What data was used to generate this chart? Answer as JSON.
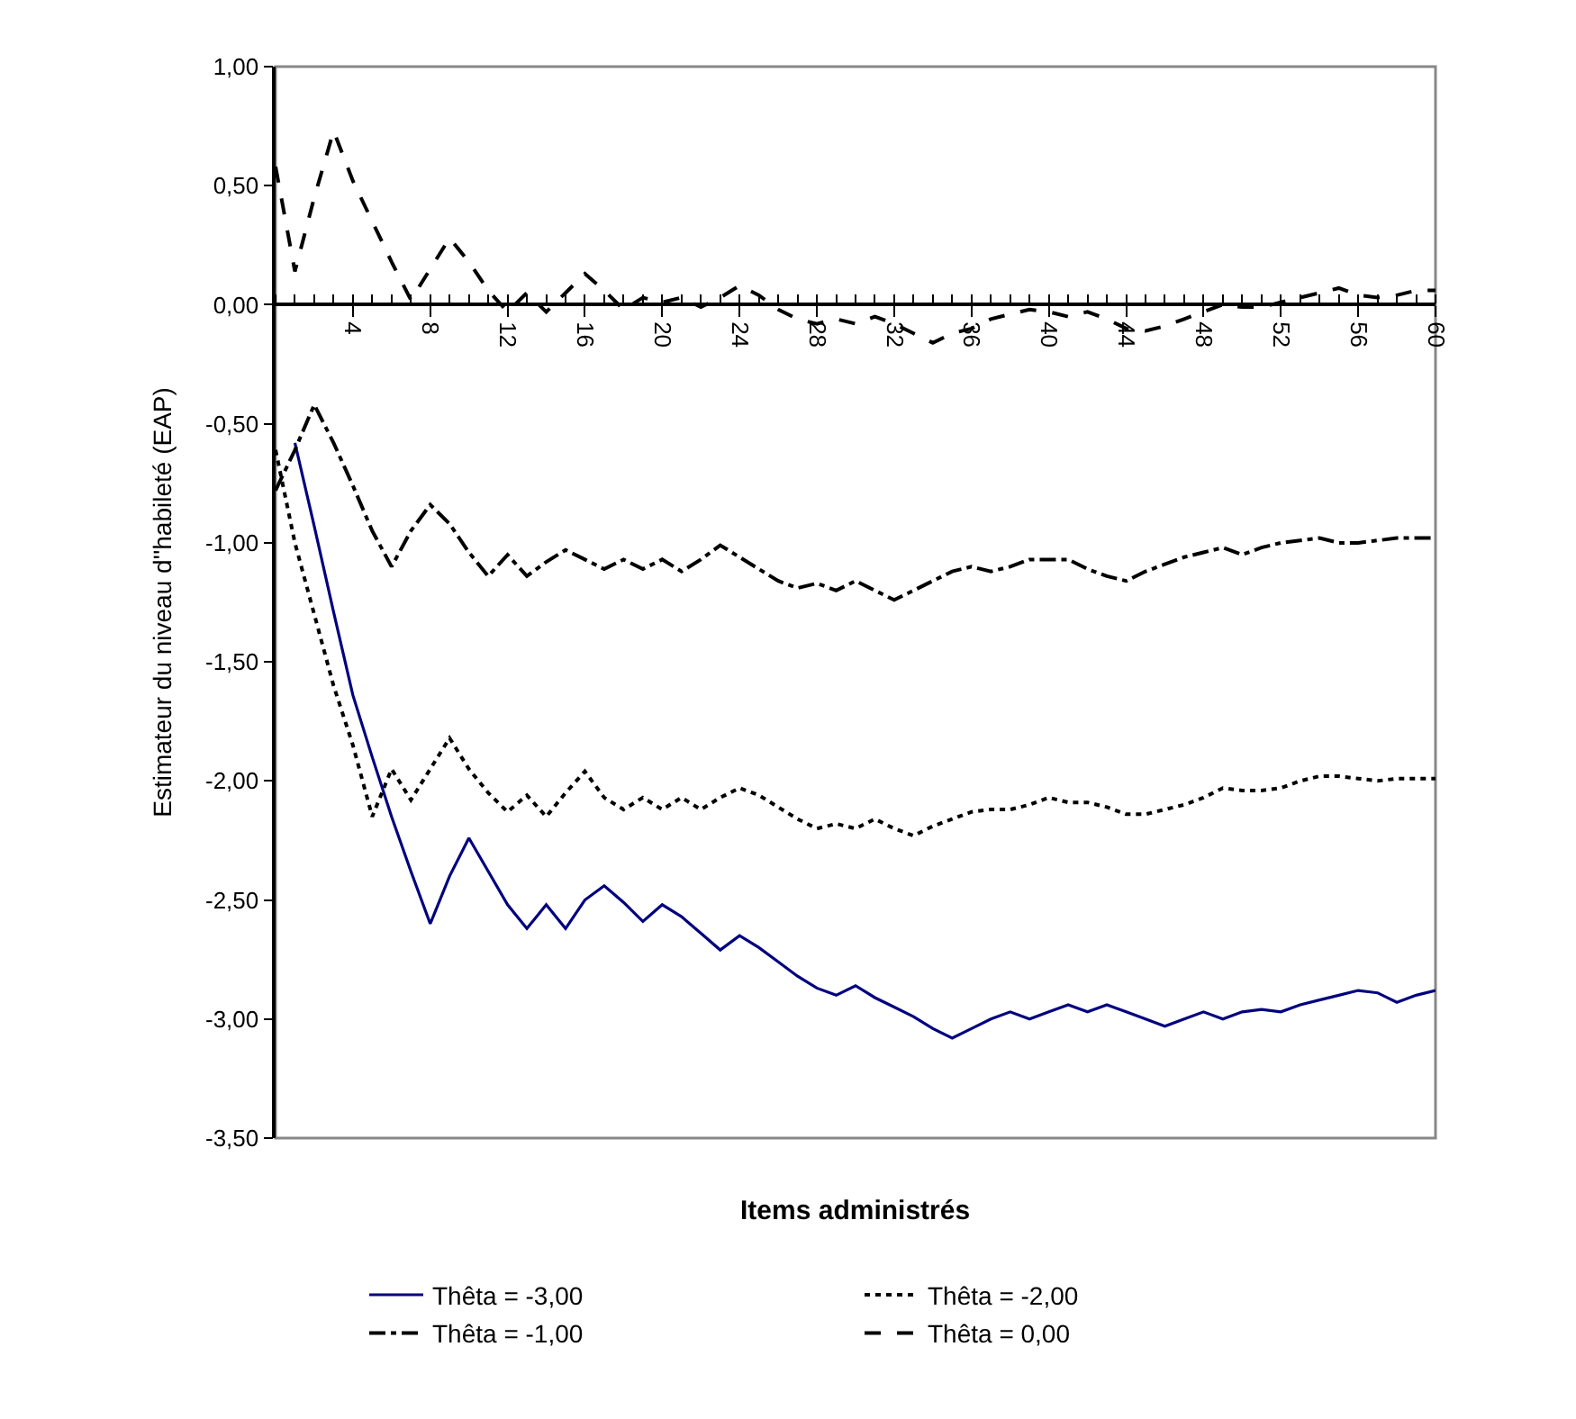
{
  "chart_data": {
    "type": "line",
    "xlabel": "Items administrés",
    "ylabel": "Estimateur du niveau d''habileté (EAP)",
    "x": [
      0,
      1,
      2,
      3,
      4,
      5,
      6,
      7,
      8,
      9,
      10,
      11,
      12,
      13,
      14,
      15,
      16,
      17,
      18,
      19,
      20,
      21,
      22,
      23,
      24,
      25,
      26,
      27,
      28,
      29,
      30,
      31,
      32,
      33,
      34,
      35,
      36,
      37,
      38,
      39,
      40,
      41,
      42,
      43,
      44,
      45,
      46,
      47,
      48,
      49,
      50,
      51,
      52,
      53,
      54,
      55,
      56,
      57,
      58,
      59,
      60
    ],
    "series": [
      {
        "name": "Thêta = -3,00",
        "color": "#000080",
        "line_style": "solid",
        "values": [
          null,
          -0.58,
          -0.93,
          -1.29,
          -1.64,
          -1.9,
          -2.15,
          -2.38,
          -2.6,
          -2.4,
          -2.24,
          -2.38,
          -2.52,
          -2.62,
          -2.52,
          -2.62,
          -2.5,
          -2.44,
          -2.51,
          -2.59,
          -2.52,
          -2.57,
          -2.64,
          -2.71,
          -2.65,
          -2.7,
          -2.76,
          -2.82,
          -2.87,
          -2.9,
          -2.86,
          -2.91,
          -2.95,
          -2.99,
          -3.04,
          -3.08,
          -3.04,
          -3.0,
          -2.97,
          -3.0,
          -2.97,
          -2.94,
          -2.97,
          -2.94,
          -2.97,
          -3.0,
          -3.03,
          -3.0,
          -2.97,
          -3.0,
          -2.97,
          -2.96,
          -2.97,
          -2.94,
          -2.92,
          -2.9,
          -2.88,
          -2.89,
          -2.93,
          -2.9,
          -2.88
        ]
      },
      {
        "name": "Thêta = -2,00",
        "color": "#000000",
        "line_style": "dotted",
        "values": [
          -0.61,
          -1.0,
          -1.3,
          -1.6,
          -1.85,
          -2.15,
          -1.95,
          -2.08,
          -1.95,
          -1.82,
          -1.95,
          -2.05,
          -2.13,
          -2.06,
          -2.15,
          -2.05,
          -1.96,
          -2.07,
          -2.12,
          -2.07,
          -2.12,
          -2.07,
          -2.12,
          -2.07,
          -2.03,
          -2.06,
          -2.11,
          -2.16,
          -2.2,
          -2.18,
          -2.2,
          -2.16,
          -2.2,
          -2.23,
          -2.19,
          -2.16,
          -2.13,
          -2.12,
          -2.12,
          -2.1,
          -2.07,
          -2.09,
          -2.09,
          -2.11,
          -2.14,
          -2.14,
          -2.12,
          -2.1,
          -2.07,
          -2.03,
          -2.04,
          -2.04,
          -2.03,
          -2.0,
          -1.98,
          -1.98,
          -1.99,
          -2.0,
          -1.99,
          -1.99,
          -1.99
        ]
      },
      {
        "name": "Thêta = -1,00",
        "color": "#000000",
        "line_style": "dashdot",
        "values": [
          -0.78,
          -0.61,
          -0.42,
          -0.58,
          -0.76,
          -0.95,
          -1.1,
          -0.95,
          -0.84,
          -0.92,
          -1.04,
          -1.14,
          -1.05,
          -1.14,
          -1.08,
          -1.03,
          -1.07,
          -1.11,
          -1.07,
          -1.11,
          -1.07,
          -1.12,
          -1.07,
          -1.01,
          -1.06,
          -1.11,
          -1.16,
          -1.19,
          -1.17,
          -1.2,
          -1.16,
          -1.2,
          -1.24,
          -1.2,
          -1.16,
          -1.12,
          -1.1,
          -1.12,
          -1.1,
          -1.07,
          -1.07,
          -1.07,
          -1.11,
          -1.14,
          -1.16,
          -1.12,
          -1.09,
          -1.06,
          -1.04,
          -1.02,
          -1.05,
          -1.02,
          -1.0,
          -0.99,
          -0.98,
          -1.0,
          -1.0,
          -0.99,
          -0.98,
          -0.98,
          -0.98
        ]
      },
      {
        "name": "Thêta = 0,00",
        "color": "#000000",
        "line_style": "dashed",
        "values": [
          0.58,
          0.14,
          0.45,
          0.73,
          0.52,
          0.35,
          0.18,
          0.02,
          0.15,
          0.28,
          0.18,
          0.06,
          -0.03,
          0.05,
          -0.03,
          0.05,
          0.13,
          0.06,
          -0.02,
          0.03,
          0.01,
          0.03,
          -0.01,
          0.03,
          0.08,
          0.04,
          -0.02,
          -0.06,
          -0.08,
          -0.06,
          -0.08,
          -0.05,
          -0.08,
          -0.12,
          -0.16,
          -0.12,
          -0.1,
          -0.06,
          -0.04,
          -0.02,
          -0.03,
          -0.05,
          -0.03,
          -0.06,
          -0.1,
          -0.11,
          -0.09,
          -0.06,
          -0.03,
          0.0,
          -0.01,
          -0.01,
          0.01,
          0.03,
          0.05,
          0.07,
          0.04,
          0.03,
          0.04,
          0.06,
          0.06
        ]
      }
    ],
    "xlim": [
      0,
      60
    ],
    "xticks": [
      4,
      8,
      12,
      16,
      20,
      24,
      28,
      32,
      36,
      40,
      44,
      48,
      52,
      56,
      60
    ],
    "ylim": [
      -3.5,
      1.0
    ],
    "yticks": [
      {
        "value": 1.0,
        "label": "1,00"
      },
      {
        "value": 0.5,
        "label": "0,50"
      },
      {
        "value": 0.0,
        "label": "0,00"
      },
      {
        "value": -0.5,
        "label": "-0,50"
      },
      {
        "value": -1.0,
        "label": "-1,00"
      },
      {
        "value": -1.5,
        "label": "-1,50"
      },
      {
        "value": -2.0,
        "label": "-2,00"
      },
      {
        "value": -2.5,
        "label": "-2,50"
      },
      {
        "value": -3.0,
        "label": "-3,00"
      },
      {
        "value": -3.5,
        "label": "-3,50"
      }
    ],
    "grid": false,
    "legend": "bottom",
    "marker": "none"
  }
}
